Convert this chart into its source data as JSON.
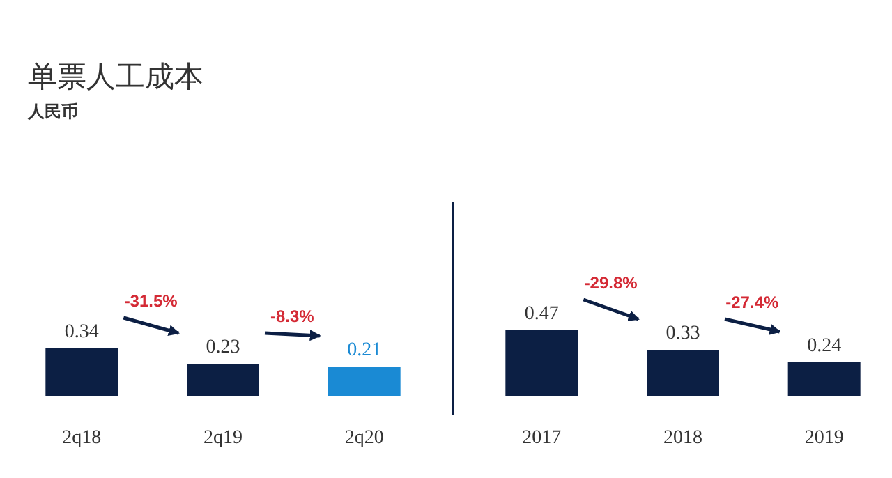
{
  "chart_data": [
    {
      "type": "bar",
      "title": "单票人工成本",
      "subtitle": "人民币",
      "categories": [
        "2q18",
        "2q19",
        "2q20"
      ],
      "values": [
        0.34,
        0.23,
        0.21
      ],
      "colors": [
        "#0c1f44",
        "#0c1f44",
        "#1a8ad4"
      ],
      "data_labels": true,
      "annotations": [
        "-31.5%",
        "-8.3%"
      ]
    },
    {
      "type": "bar",
      "categories": [
        "2017",
        "2018",
        "2019"
      ],
      "values": [
        0.47,
        0.33,
        0.24
      ],
      "colors": [
        "#0c1f44",
        "#0c1f44",
        "#0c1f44"
      ],
      "data_labels": true,
      "annotations": [
        "-29.8%",
        "-27.4%"
      ]
    }
  ]
}
